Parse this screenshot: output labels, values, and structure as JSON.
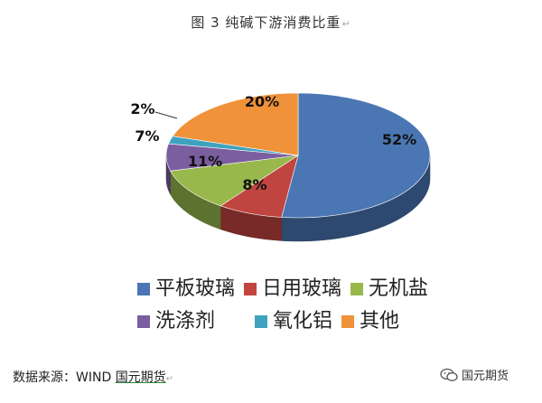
{
  "title": "图 3 纯碱下游消费比重",
  "title_mark": "↵",
  "chart_data": {
    "type": "pie",
    "title": "图 3 纯碱下游消费比重",
    "slices": [
      {
        "label": "平板玻璃",
        "value": 52,
        "value_label": "52%",
        "color": "#4a76b4"
      },
      {
        "label": "日用玻璃",
        "value": 8,
        "value_label": "8%",
        "color": "#c0443f"
      },
      {
        "label": "无机盐",
        "value": 11,
        "value_label": "11%",
        "color": "#98b84b"
      },
      {
        "label": "洗涤剂",
        "value": 7,
        "value_label": "7%",
        "color": "#7b5e9f"
      },
      {
        "label": "氧化铝",
        "value": 2,
        "value_label": "2%",
        "color": "#3fa3bf"
      },
      {
        "label": "其他",
        "value": 20,
        "value_label": "20%",
        "color": "#f0923a"
      }
    ],
    "legend_position": "bottom",
    "style": "3d"
  },
  "legend": {
    "items": [
      {
        "label": "平板玻璃",
        "color": "#4a76b4"
      },
      {
        "label": "日用玻璃",
        "color": "#c0443f"
      },
      {
        "label": "无机盐",
        "color": "#98b84b"
      },
      {
        "label": "洗涤剂",
        "color": "#7b5e9f"
      },
      {
        "label": "氧化铝",
        "color": "#3fa3bf"
      },
      {
        "label": "其他",
        "color": "#f0923a"
      }
    ]
  },
  "source": {
    "prefix": "数据来源：WIND ",
    "underlined": "国元期货",
    "mark": "↵"
  },
  "watermark": {
    "icon": "wechat-icon",
    "text": "国元期货"
  }
}
